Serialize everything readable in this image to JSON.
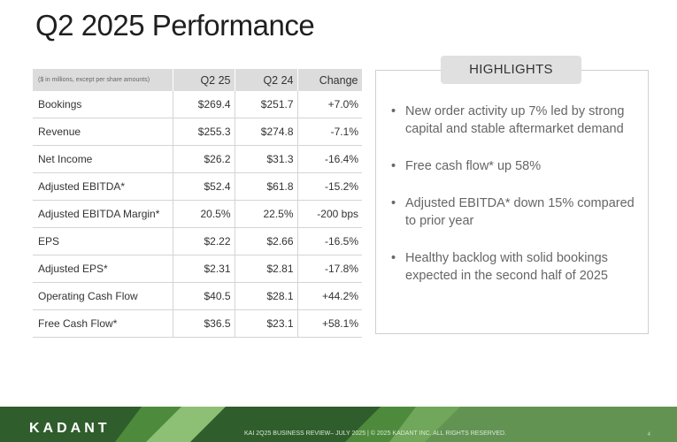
{
  "slide": {
    "title": "Q2 2025 Performance"
  },
  "table": {
    "headers": [
      "($ in millions, except per share amounts)",
      "Q2 25",
      "Q2 24",
      "Change"
    ],
    "rows": [
      {
        "metric": "Bookings",
        "q2_25": "$269.4",
        "q2_24": "$251.7",
        "change": "+7.0%"
      },
      {
        "metric": "Revenue",
        "q2_25": "$255.3",
        "q2_24": "$274.8",
        "change": "-7.1%"
      },
      {
        "metric": "Net Income",
        "q2_25": "$26.2",
        "q2_24": "$31.3",
        "change": "-16.4%"
      },
      {
        "metric": "Adjusted EBITDA*",
        "q2_25": "$52.4",
        "q2_24": "$61.8",
        "change": "-15.2%"
      },
      {
        "metric": "Adjusted EBITDA Margin*",
        "q2_25": "20.5%",
        "q2_24": "22.5%",
        "change": "-200 bps"
      },
      {
        "metric": "EPS",
        "q2_25": "$2.22",
        "q2_24": "$2.66",
        "change": "-16.5%"
      },
      {
        "metric": "Adjusted EPS*",
        "q2_25": "$2.31",
        "q2_24": "$2.81",
        "change": "-17.8%"
      },
      {
        "metric": "Operating Cash Flow",
        "q2_25": "$40.5",
        "q2_24": "$28.1",
        "change": "+44.2%"
      },
      {
        "metric": "Free Cash Flow*",
        "q2_25": "$36.5",
        "q2_24": "$23.1",
        "change": "+58.1%"
      }
    ]
  },
  "highlights": {
    "title": "HIGHLIGHTS",
    "bullet_glyph": "•",
    "items": [
      "New order activity up 7% led by strong capital and stable aftermarket demand",
      "Free cash flow* up 58%",
      "Adjusted EBITDA* down 15% compared to prior year",
      "Healthy backlog with solid bookings expected in the second half of 2025"
    ]
  },
  "footer": {
    "logo": "KADANT",
    "footnote": "KAI 2Q25 BUSINESS REVIEW– JULY 2025 | © 2025 KADANT INC. ALL RIGHTS RESERVED.",
    "page": "4"
  },
  "colors": {
    "footer_dark": "#2f5d2c",
    "footer_mid": "#4e8a3c",
    "footer_light": "#8dbf74",
    "table_header_bg": "#dcdcdc",
    "highlights_header_bg": "#e0e0e0"
  }
}
